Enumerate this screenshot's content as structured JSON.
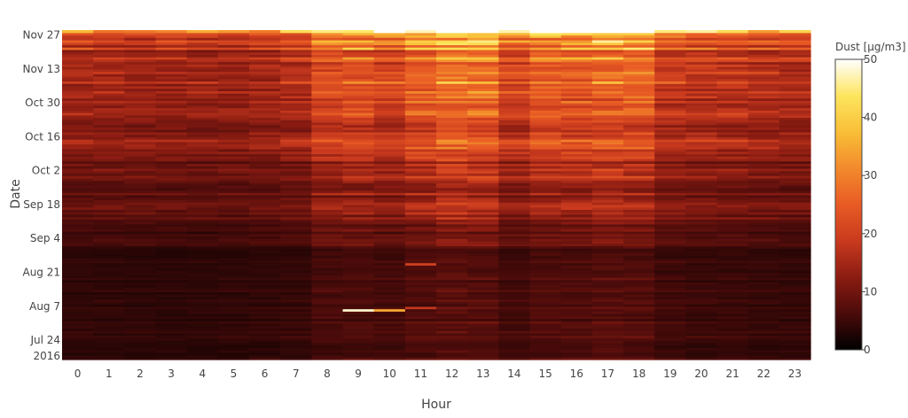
{
  "chart_data": {
    "type": "heatmap",
    "title": "",
    "xlabel": "Hour",
    "ylabel": "Date",
    "x_categories": [
      "0",
      "1",
      "2",
      "3",
      "4",
      "5",
      "6",
      "7",
      "8",
      "9",
      "10",
      "11",
      "12",
      "13",
      "14",
      "15",
      "16",
      "17",
      "18",
      "19",
      "20",
      "21",
      "22",
      "23"
    ],
    "y_tick_labels": [
      "Nov 27",
      "Nov 13",
      "Oct 30",
      "Oct 16",
      "Oct 2",
      "Sep 18",
      "Sep 4",
      "Aug 21",
      "Aug 7",
      "Jul 24",
      "2016"
    ],
    "y_tick_dates": [
      "2016-11-27",
      "2016-11-13",
      "2016-10-30",
      "2016-10-16",
      "2016-10-02",
      "2016-09-18",
      "2016-09-04",
      "2016-08-21",
      "2016-08-07",
      "2016-07-24",
      "2016-07-24"
    ],
    "y_range_dates": [
      "2016-07-16",
      "2016-11-29"
    ],
    "colorbar": {
      "title": "Dust [µg/m3]",
      "min": 0,
      "max": 50,
      "ticks": [
        0,
        10,
        20,
        30,
        40,
        50
      ]
    },
    "colorscale": [
      "#000000",
      "#4a0b0a",
      "#8b1c12",
      "#c93a1e",
      "#e85b24",
      "#f28a2c",
      "#f9bf37",
      "#fde55e",
      "#ffffff"
    ],
    "date_band_levels": [
      {
        "from": "2016-07-16",
        "to": "2016-08-31",
        "level": 5
      },
      {
        "from": "2016-09-01",
        "to": "2016-09-09",
        "level": 7
      },
      {
        "from": "2016-09-10",
        "to": "2016-09-25",
        "level": 10
      },
      {
        "from": "2016-09-26",
        "to": "2016-10-05",
        "level": 12
      },
      {
        "from": "2016-10-06",
        "to": "2016-10-31",
        "level": 16
      },
      {
        "from": "2016-11-01",
        "to": "2016-11-20",
        "level": 20
      },
      {
        "from": "2016-11-21",
        "to": "2016-11-25",
        "level": 23
      },
      {
        "from": "2016-11-26",
        "to": "2016-11-29",
        "level": 33
      }
    ],
    "hour_profile": [
      0.82,
      0.8,
      0.78,
      0.77,
      0.77,
      0.78,
      0.82,
      0.9,
      1.2,
      1.25,
      1.15,
      1.35,
      1.55,
      1.5,
      1.15,
      1.35,
      1.35,
      1.45,
      1.4,
      1.05,
      1.0,
      0.98,
      0.92,
      0.88
    ],
    "highlights": [
      {
        "date": "2016-08-05",
        "hour": 9,
        "value": 48
      },
      {
        "date": "2016-08-05",
        "hour": 10,
        "value": 35
      },
      {
        "date": "2016-08-06",
        "hour": 11,
        "value": 18
      },
      {
        "date": "2016-08-24",
        "hour": 11,
        "value": 20
      }
    ],
    "grid": false,
    "legend": "colorbar-right"
  }
}
